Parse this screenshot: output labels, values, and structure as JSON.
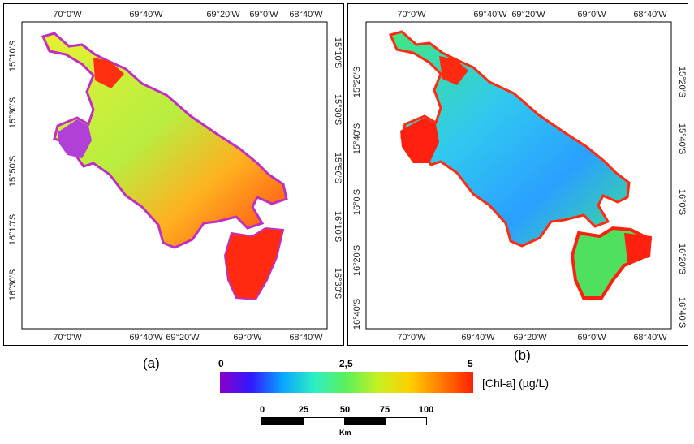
{
  "panel_a": {
    "label": "(a)",
    "lon_ticks": [
      "70°0'W",
      "69°40'W",
      "69°20'W",
      "69°0'W",
      "68°40'W"
    ],
    "lat_left": [
      "15°10'S",
      "15°30'S",
      "15°50'S",
      "16°10'S",
      "16°30'S"
    ],
    "lat_right": [
      "15°10'S",
      "15°30'S",
      "15°50'S",
      "16°10'S",
      "16°30'S"
    ]
  },
  "panel_b": {
    "label": "(b)",
    "lon_ticks": [
      "70°0'W",
      "69°40'W",
      "69°20'W",
      "69°0'W",
      "68°40'W"
    ],
    "lat_left": [
      "15°20'S",
      "15°40'S",
      "16°0'S",
      "16°20'S",
      "16°40'S"
    ],
    "lat_right": [
      "15°20'S",
      "15°40'S",
      "16°0'S",
      "16°20'S",
      "16°40'S"
    ]
  },
  "colorbar": {
    "min_label": "0",
    "mid_label": "2,5",
    "max_label": "5",
    "unit": "[Chl-a] (µg/L)",
    "colors": [
      "#8a00c8",
      "#2f1aff",
      "#0aa8ff",
      "#2df0c0",
      "#5cf05a",
      "#c8f020",
      "#ffd000",
      "#ff7a00",
      "#ff2000"
    ]
  },
  "scalebar": {
    "ticks": [
      "0",
      "25",
      "50",
      "75",
      "100"
    ],
    "unit": "Km"
  }
}
